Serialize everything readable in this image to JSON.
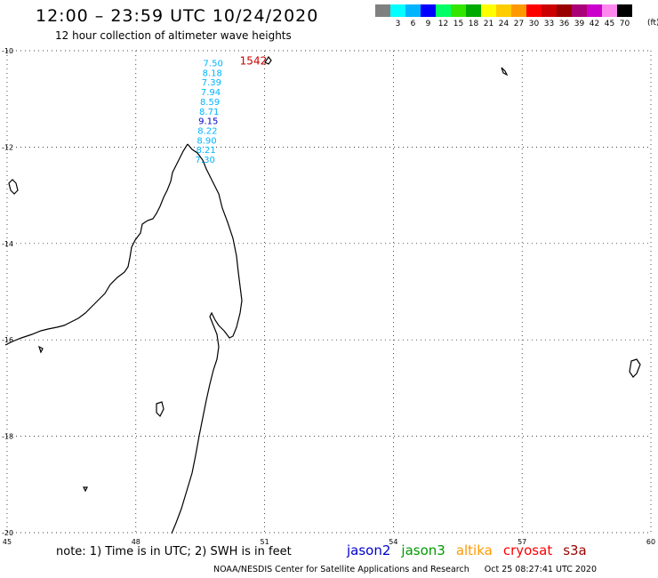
{
  "header": {
    "title": "12:00 – 23:59 UTC 10/24/2020",
    "subtitle": "12 hour collection of altimeter wave heights"
  },
  "legend": {
    "bins": [
      {
        "label": "",
        "color": "#808080"
      },
      {
        "label": "3",
        "color": "#00ffff"
      },
      {
        "label": "6",
        "color": "#00b4ff"
      },
      {
        "label": "9",
        "color": "#0000ff"
      },
      {
        "label": "12",
        "color": "#00ff66"
      },
      {
        "label": "15",
        "color": "#33e600"
      },
      {
        "label": "18",
        "color": "#00aa00"
      },
      {
        "label": "21",
        "color": "#ffff00"
      },
      {
        "label": "24",
        "color": "#ffcc00"
      },
      {
        "label": "27",
        "color": "#ff9900"
      },
      {
        "label": "30",
        "color": "#ff0000"
      },
      {
        "label": "33",
        "color": "#cc0000"
      },
      {
        "label": "36",
        "color": "#990000"
      },
      {
        "label": "39",
        "color": "#aa0077"
      },
      {
        "label": "42",
        "color": "#cc00cc"
      },
      {
        "label": "45",
        "color": "#ff88ee"
      },
      {
        "label": "70",
        "color": "#000000"
      }
    ],
    "unit": "(ft)"
  },
  "chart_data": {
    "type": "scatter",
    "xlim": [
      45,
      60
    ],
    "ylim": [
      -20,
      -10
    ],
    "x_ticks": [
      "45",
      "48",
      "51",
      "54",
      "57",
      "60"
    ],
    "y_ticks": [
      "-10",
      "-12",
      "-14",
      "-16",
      "-18",
      "-20"
    ],
    "grid": "dotted",
    "track": {
      "time_label": "1542",
      "time_label_color": "#cc0000",
      "points": [
        {
          "lon": 49.8,
          "lat": -10.25,
          "swh": "7.50",
          "color": "#00b4ff"
        },
        {
          "lon": 49.8,
          "lat": -10.45,
          "swh": "8.18",
          "color": "#00b4ff"
        },
        {
          "lon": 49.8,
          "lat": -10.65,
          "swh": "7.39",
          "color": "#00b4ff"
        },
        {
          "lon": 49.8,
          "lat": -10.85,
          "swh": "7.94",
          "color": "#00b4ff"
        },
        {
          "lon": 49.8,
          "lat": -11.05,
          "swh": "8.59",
          "color": "#00b4ff"
        },
        {
          "lon": 49.8,
          "lat": -11.25,
          "swh": "8.71",
          "color": "#00b4ff"
        },
        {
          "lon": 49.8,
          "lat": -11.45,
          "swh": "9.15",
          "color": "#0000cc"
        },
        {
          "lon": 49.8,
          "lat": -11.65,
          "swh": "8.22",
          "color": "#00b4ff"
        },
        {
          "lon": 49.8,
          "lat": -11.85,
          "swh": "8.90",
          "color": "#00b4ff"
        },
        {
          "lon": 49.8,
          "lat": -12.05,
          "swh": "8.21",
          "color": "#00b4ff"
        },
        {
          "lon": 49.8,
          "lat": -12.25,
          "swh": "7.30",
          "color": "#00b4ff"
        }
      ]
    }
  },
  "footer": {
    "note": "note:  1) Time is in UTC;  2) SWH is in feet",
    "satellites": [
      {
        "name": "jason2",
        "color": "#0000cc"
      },
      {
        "name": "jason3",
        "color": "#009900"
      },
      {
        "name": "altika",
        "color": "#ff9900"
      },
      {
        "name": "cryosat",
        "color": "#ff0000"
      },
      {
        "name": "s3a",
        "color": "#990000"
      }
    ],
    "credit": "NOAA/NESDIS Center for Satellite Applications and Research",
    "timestamp": "Oct 25 08:27:41 UTC 2020"
  }
}
